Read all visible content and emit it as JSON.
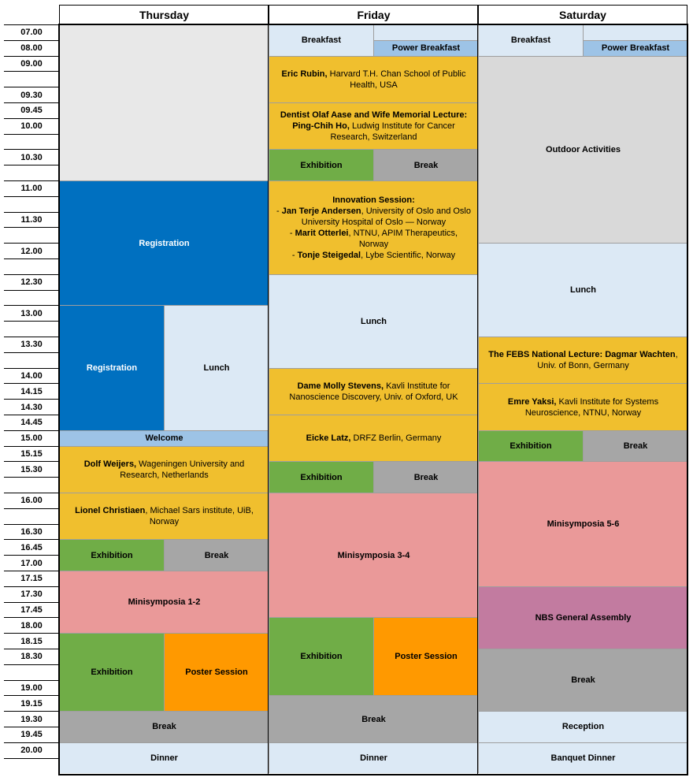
{
  "days": [
    "Thursday",
    "Friday",
    "Saturday"
  ],
  "times": [
    "07.00",
    "08.00",
    "09.00",
    "",
    "09.30",
    "09.45",
    "10.00",
    "",
    "10.30",
    "",
    "11.00",
    "",
    "11.30",
    "",
    "12.00",
    "",
    "12.30",
    "",
    "13.00",
    "",
    "13.30",
    "",
    "14.00",
    "14.15",
    "14.30",
    "14.45",
    "15.00",
    "15.15",
    "15.30",
    "",
    "16.00",
    "",
    "16.30",
    "16.45",
    "17.00",
    "17.15",
    "17.30",
    "17.45",
    "18.00",
    "18.15",
    "18.30",
    "",
    "19.00",
    "19.15",
    "19.30",
    "19.45",
    "20.00",
    ""
  ],
  "colors": {
    "light": "#dce9f5",
    "pale_blue": "#9dc3e6",
    "blue": "#0070c0",
    "gold": "#f0bf2e",
    "green": "#70ad47",
    "gray": "#a6a6a6",
    "light_gray": "#e8e8e8",
    "outdoor_gray": "#d9d9d9",
    "pink": "#ea9999",
    "orange": "#ff9900",
    "purple": "#c27ba0"
  },
  "events": [
    {
      "day": 0,
      "start": 0,
      "end": 10,
      "half": "full",
      "color": "light_gray",
      "bold": "",
      "text": ""
    },
    {
      "day": 0,
      "start": 10,
      "end": 18,
      "half": "full",
      "color": "blue",
      "bold": "Registration",
      "text": "",
      "white": true
    },
    {
      "day": 0,
      "start": 18,
      "end": 26,
      "half": "left",
      "color": "blue",
      "bold": "Registration",
      "text": "",
      "white": true
    },
    {
      "day": 0,
      "start": 18,
      "end": 26,
      "half": "right",
      "color": "light",
      "bold": "Lunch",
      "text": ""
    },
    {
      "day": 0,
      "start": 26,
      "end": 27,
      "half": "full",
      "color": "pale_blue",
      "bold": "Welcome",
      "text": ""
    },
    {
      "day": 0,
      "start": 27,
      "end": 30,
      "half": "full",
      "color": "gold",
      "bold": "Dolf Weijers,",
      "text": " Wageningen University and Research, Netherlands"
    },
    {
      "day": 0,
      "start": 30,
      "end": 33,
      "half": "full",
      "color": "gold",
      "bold": "Lionel Christiaen",
      "text": ", Michael Sars institute, UiB, Norway"
    },
    {
      "day": 0,
      "start": 33,
      "end": 35,
      "half": "left",
      "color": "green",
      "bold": "Exhibition",
      "text": ""
    },
    {
      "day": 0,
      "start": 33,
      "end": 35,
      "half": "right",
      "color": "gray",
      "bold": "Break",
      "text": ""
    },
    {
      "day": 0,
      "start": 35,
      "end": 39,
      "half": "full",
      "color": "pink",
      "bold": "Minisymposia 1-2",
      "text": ""
    },
    {
      "day": 0,
      "start": 39,
      "end": 44,
      "half": "left",
      "color": "green",
      "bold": "Exhibition",
      "text": ""
    },
    {
      "day": 0,
      "start": 39,
      "end": 44,
      "half": "right",
      "color": "orange",
      "bold": "Poster Session",
      "text": ""
    },
    {
      "day": 0,
      "start": 44,
      "end": 46,
      "half": "full",
      "color": "gray",
      "bold": "Break",
      "text": ""
    },
    {
      "day": 0,
      "start": 46,
      "end": 48,
      "half": "full",
      "color": "light",
      "bold": "Dinner",
      "text": ""
    },
    {
      "day": 1,
      "start": 0,
      "end": 2,
      "half": "left",
      "color": "light",
      "bold": "Breakfast",
      "text": ""
    },
    {
      "day": 1,
      "start": 0,
      "end": 1,
      "half": "right",
      "color": "light",
      "bold": "",
      "text": ""
    },
    {
      "day": 1,
      "start": 1,
      "end": 2,
      "half": "right",
      "color": "pale_blue",
      "bold": "Power Breakfast",
      "text": ""
    },
    {
      "day": 1,
      "start": 2,
      "end": 5,
      "half": "full",
      "color": "gold",
      "bold": "Eric Rubin,",
      "text": " Harvard T.H. Chan School of Public Health, USA"
    },
    {
      "day": 1,
      "start": 5,
      "end": 8,
      "half": "full",
      "color": "gold",
      "bold": "Dentist Olaf Aase and Wife Memorial Lecture: Ping-Chih Ho,",
      "text": " Ludwig Institute for Cancer Research, Switzerland"
    },
    {
      "day": 1,
      "start": 8,
      "end": 10,
      "half": "left",
      "color": "green",
      "bold": "Exhibition",
      "text": ""
    },
    {
      "day": 1,
      "start": 8,
      "end": 10,
      "half": "right",
      "color": "gray",
      "bold": "Break",
      "text": ""
    },
    {
      "day": 1,
      "start": 10,
      "end": 16,
      "half": "full",
      "color": "gold",
      "bold": "",
      "text": "",
      "lines": [
        [
          {
            "b": "Innovation Session:"
          }
        ],
        [
          {
            "t": "- "
          },
          {
            "b": "Jan Terje Andersen"
          },
          {
            "t": ", University of Oslo and Oslo University Hospital of Oslo — Norway"
          }
        ],
        [
          {
            "t": "- "
          },
          {
            "b": "Marit Otterlei"
          },
          {
            "t": ", NTNU, APIM Therapeutics, Norway"
          }
        ],
        [
          {
            "t": "- "
          },
          {
            "b": "Tonje Steigedal"
          },
          {
            "t": ", Lybe Scientific, Norway"
          }
        ]
      ]
    },
    {
      "day": 1,
      "start": 16,
      "end": 22,
      "half": "full",
      "color": "light",
      "bold": "Lunch",
      "text": ""
    },
    {
      "day": 1,
      "start": 22,
      "end": 25,
      "half": "full",
      "color": "gold",
      "bold": "Dame Molly Stevens,",
      "text": " Kavli Institute for Nanoscience Discovery, Univ. of Oxford, UK"
    },
    {
      "day": 1,
      "start": 25,
      "end": 28,
      "half": "full",
      "color": "gold",
      "bold": "Eicke Latz,",
      "text": " DRFZ Berlin, Germany"
    },
    {
      "day": 1,
      "start": 28,
      "end": 30,
      "half": "left",
      "color": "green",
      "bold": "Exhibition",
      "text": ""
    },
    {
      "day": 1,
      "start": 28,
      "end": 30,
      "half": "right",
      "color": "gray",
      "bold": "Break",
      "text": ""
    },
    {
      "day": 1,
      "start": 30,
      "end": 38,
      "half": "full",
      "color": "pink",
      "bold": "Minisymposia 3-4",
      "text": ""
    },
    {
      "day": 1,
      "start": 38,
      "end": 43,
      "half": "left",
      "color": "green",
      "bold": "Exhibition",
      "text": ""
    },
    {
      "day": 1,
      "start": 38,
      "end": 43,
      "half": "right",
      "color": "orange",
      "bold": "Poster Session",
      "text": ""
    },
    {
      "day": 1,
      "start": 43,
      "end": 46,
      "half": "full",
      "color": "gray",
      "bold": "Break",
      "text": ""
    },
    {
      "day": 1,
      "start": 46,
      "end": 48,
      "half": "full",
      "color": "light",
      "bold": "Dinner",
      "text": ""
    },
    {
      "day": 2,
      "start": 0,
      "end": 2,
      "half": "left",
      "color": "light",
      "bold": "Breakfast",
      "text": ""
    },
    {
      "day": 2,
      "start": 0,
      "end": 1,
      "half": "right",
      "color": "light",
      "bold": "",
      "text": ""
    },
    {
      "day": 2,
      "start": 1,
      "end": 2,
      "half": "right",
      "color": "pale_blue",
      "bold": "Power Breakfast",
      "text": ""
    },
    {
      "day": 2,
      "start": 2,
      "end": 14,
      "half": "full",
      "color": "outdoor_gray",
      "bold": "Outdoor Activities",
      "text": ""
    },
    {
      "day": 2,
      "start": 14,
      "end": 20,
      "half": "full",
      "color": "light",
      "bold": "Lunch",
      "text": ""
    },
    {
      "day": 2,
      "start": 20,
      "end": 23,
      "half": "full",
      "color": "gold",
      "bold": "The FEBS National Lecture: Dagmar Wachten",
      "text": ", Univ. of Bonn, Germany"
    },
    {
      "day": 2,
      "start": 23,
      "end": 26,
      "half": "full",
      "color": "gold",
      "bold": "Emre Yaksi,",
      "text": " Kavli Institute for Systems Neuroscience, NTNU, Norway"
    },
    {
      "day": 2,
      "start": 26,
      "end": 28,
      "half": "left",
      "color": "green",
      "bold": "Exhibition",
      "text": ""
    },
    {
      "day": 2,
      "start": 26,
      "end": 28,
      "half": "right",
      "color": "gray",
      "bold": "Break",
      "text": ""
    },
    {
      "day": 2,
      "start": 28,
      "end": 36,
      "half": "full",
      "color": "pink",
      "bold": "Minisymposia 5-6",
      "text": ""
    },
    {
      "day": 2,
      "start": 36,
      "end": 40,
      "half": "full",
      "color": "purple",
      "bold": "NBS General Assembly",
      "text": ""
    },
    {
      "day": 2,
      "start": 40,
      "end": 44,
      "half": "full",
      "color": "gray",
      "bold": "Break",
      "text": ""
    },
    {
      "day": 2,
      "start": 44,
      "end": 46,
      "half": "full",
      "color": "light",
      "bold": "Reception",
      "text": ""
    },
    {
      "day": 2,
      "start": 46,
      "end": 48,
      "half": "full",
      "color": "light",
      "bold": "Banquet Dinner",
      "text": ""
    }
  ]
}
